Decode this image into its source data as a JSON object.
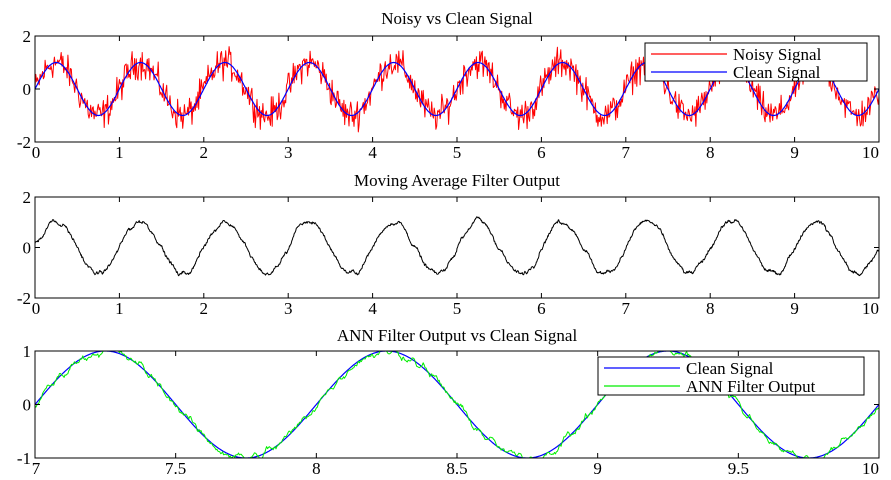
{
  "chart_data": [
    {
      "type": "line",
      "title": "Noisy vs Clean Signal",
      "xlim": [
        0,
        10
      ],
      "ylim": [
        -2,
        2
      ],
      "xticks": [
        0,
        1,
        2,
        3,
        4,
        5,
        6,
        7,
        8,
        9,
        10
      ],
      "yticks": [
        -2,
        0,
        2
      ],
      "grid": false,
      "legend": "top-right",
      "series": [
        {
          "name": "Noisy Signal",
          "color": "#ff0000",
          "description": "sin(2*pi*x) plus random noise, amplitude up to about ±2"
        },
        {
          "name": "Clean Signal",
          "color": "#0000ff",
          "function": "sin(2*pi*x)",
          "x_range": [
            0,
            10
          ],
          "amplitude": 1,
          "period": 1
        }
      ]
    },
    {
      "type": "line",
      "title": "Moving Average Filter Output",
      "xlim": [
        0,
        10
      ],
      "ylim": [
        -2,
        2
      ],
      "xticks": [
        0,
        1,
        2,
        3,
        4,
        5,
        6,
        7,
        8,
        9,
        10
      ],
      "yticks": [
        -2,
        0,
        2
      ],
      "grid": false,
      "series": [
        {
          "color": "#000000",
          "description": "smoothed noisy sinusoid, amplitude about ±1.3, period 1"
        }
      ]
    },
    {
      "type": "line",
      "title": "ANN Filter Output vs Clean Signal",
      "xlim": [
        7,
        10
      ],
      "ylim": [
        -1,
        1
      ],
      "xticks": [
        7,
        7.5,
        8,
        8.5,
        9,
        9.5,
        10
      ],
      "yticks": [
        -1,
        0,
        1
      ],
      "grid": false,
      "legend": "top-right",
      "series": [
        {
          "name": "Clean Signal",
          "color": "#0000ff",
          "function": "sin(2*pi*x)",
          "x_range": [
            7,
            10
          ],
          "amplitude": 1,
          "period": 1
        },
        {
          "name": "ANN Filter Output",
          "color": "#00ee00",
          "description": "sin(2*pi*x) with small residual noise"
        }
      ]
    }
  ]
}
